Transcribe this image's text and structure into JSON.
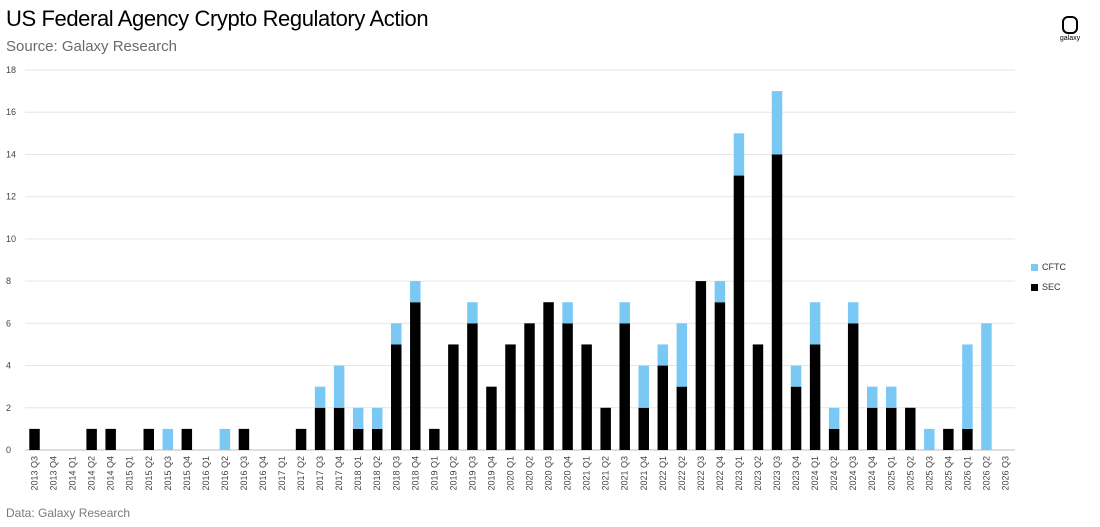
{
  "header": {
    "title": "US Federal Agency Crypto Regulatory Action",
    "subtitle": "Source: Galaxy Research",
    "logo_text": "galaxy"
  },
  "footer": {
    "note": "Data: Galaxy Research"
  },
  "colors": {
    "SEC": "#000000",
    "CFTC": "#7ac8f4",
    "grid": "#e6e6e6"
  },
  "chart_data": {
    "type": "bar",
    "stacked": true,
    "title": "US Federal Agency Crypto Regulatory Action",
    "subtitle": "Source: Galaxy Research",
    "ylim": [
      0,
      18
    ],
    "yticks": [
      0,
      2,
      4,
      6,
      8,
      10,
      12,
      14,
      16,
      18
    ],
    "grid": true,
    "legend_position": "right",
    "categories": [
      "2013 Q3",
      "2013 Q4",
      "2014 Q1",
      "2014 Q2",
      "2014 Q4",
      "2015 Q1",
      "2015 Q2",
      "2015 Q3",
      "2015 Q4",
      "2016 Q1",
      "2016 Q2",
      "2016 Q3",
      "2016 Q4",
      "2017 Q1",
      "2017 Q2",
      "2017 Q3",
      "2017 Q4",
      "2018 Q1",
      "2018 Q2",
      "2018 Q3",
      "2018 Q4",
      "2019 Q1",
      "2019 Q2",
      "2019 Q3",
      "2019 Q4",
      "2020 Q1",
      "2020 Q2",
      "2020 Q3",
      "2020 Q4",
      "2021 Q1",
      "2021 Q2",
      "2021 Q3",
      "2021 Q4",
      "2022 Q1",
      "2022 Q2",
      "2022 Q3",
      "2022 Q4",
      "2023 Q1",
      "2023 Q2",
      "2023 Q3",
      "2023 Q4",
      "2024 Q1",
      "2024 Q2",
      "2024 Q3",
      "2024 Q4",
      "2025 Q1",
      "2025 Q2",
      "2025 Q3",
      "2025 Q4",
      "2026 Q1",
      "2026 Q2",
      "2026 Q3"
    ],
    "series": [
      {
        "name": "SEC",
        "values": [
          1,
          0,
          0,
          1,
          1,
          0,
          1,
          0,
          1,
          0,
          0,
          1,
          0,
          0,
          1,
          2,
          2,
          1,
          1,
          5,
          7,
          1,
          5,
          6,
          3,
          5,
          6,
          7,
          6,
          5,
          2,
          6,
          2,
          4,
          3,
          8,
          7,
          13,
          5,
          14,
          3,
          5,
          1,
          6,
          2,
          2,
          2,
          0,
          1,
          1,
          0,
          0
        ]
      },
      {
        "name": "CFTC",
        "values": [
          0,
          0,
          0,
          0,
          0,
          0,
          0,
          1,
          0,
          0,
          1,
          0,
          0,
          0,
          0,
          1,
          2,
          1,
          1,
          1,
          1,
          0,
          0,
          1,
          0,
          0,
          0,
          0,
          1,
          0,
          0,
          1,
          2,
          1,
          3,
          0,
          1,
          2,
          0,
          3,
          1,
          2,
          1,
          1,
          1,
          1,
          0,
          1,
          0,
          4,
          6,
          0
        ]
      }
    ]
  }
}
